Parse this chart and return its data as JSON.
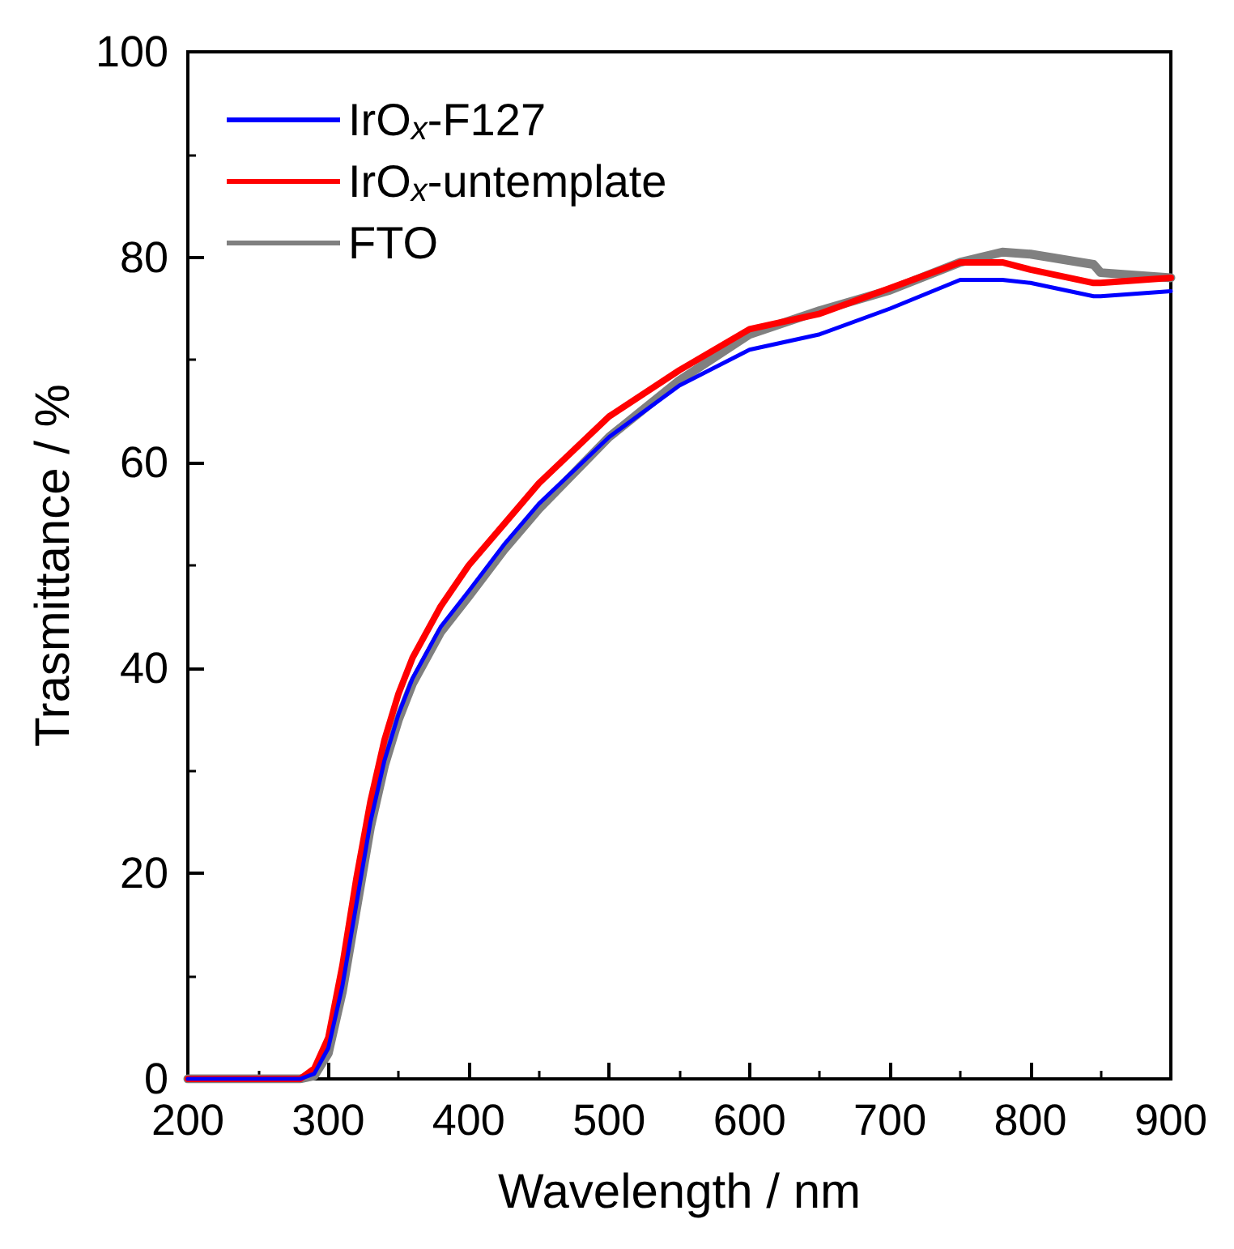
{
  "chart_data": {
    "type": "line",
    "xlabel": "Wavelength / nm",
    "ylabel": "Trasmittance / %",
    "x": [
      200,
      250,
      280,
      290,
      300,
      310,
      320,
      330,
      340,
      350,
      360,
      380,
      400,
      425,
      450,
      500,
      550,
      600,
      650,
      700,
      750,
      780,
      800,
      845,
      850,
      900
    ],
    "series": [
      {
        "name": "IrO$_{x}$-F127",
        "color": "#0000ff",
        "values": [
          0,
          0,
          0,
          0.5,
          3,
          9,
          17,
          25,
          31,
          35.5,
          39,
          44,
          47.5,
          52,
          56,
          62.5,
          67.5,
          71,
          72.5,
          75,
          77.8,
          77.8,
          77.5,
          76.2,
          76.2,
          76.7
        ]
      },
      {
        "name": "IrO$_{x}$-untemplate",
        "color": "#ff0000",
        "values": [
          0,
          0,
          0,
          1,
          4,
          11,
          19.5,
          27,
          33,
          37.5,
          41,
          46,
          50,
          54,
          58,
          64.5,
          69,
          73,
          74.5,
          77,
          79.5,
          79.5,
          78.8,
          77.5,
          77.5,
          78
        ]
      },
      {
        "name": "FTO",
        "color": "#808080",
        "values": [
          0,
          0,
          0,
          0.3,
          2.5,
          8.5,
          16.5,
          24.5,
          30.5,
          35,
          38.5,
          43.5,
          47,
          51.5,
          55.5,
          62.5,
          68,
          72.5,
          74.8,
          76.8,
          79.5,
          80.5,
          80.3,
          79.3,
          78.5,
          78
        ]
      }
    ],
    "xlim": [
      200,
      900
    ],
    "xticks": [
      200,
      300,
      400,
      500,
      600,
      700,
      800,
      900
    ],
    "ylim": [
      0,
      100
    ],
    "yticks": [
      0,
      20,
      40,
      60,
      80,
      100
    ],
    "grid": false,
    "legend": "top left",
    "marker": "none",
    "line_style": "solid"
  }
}
